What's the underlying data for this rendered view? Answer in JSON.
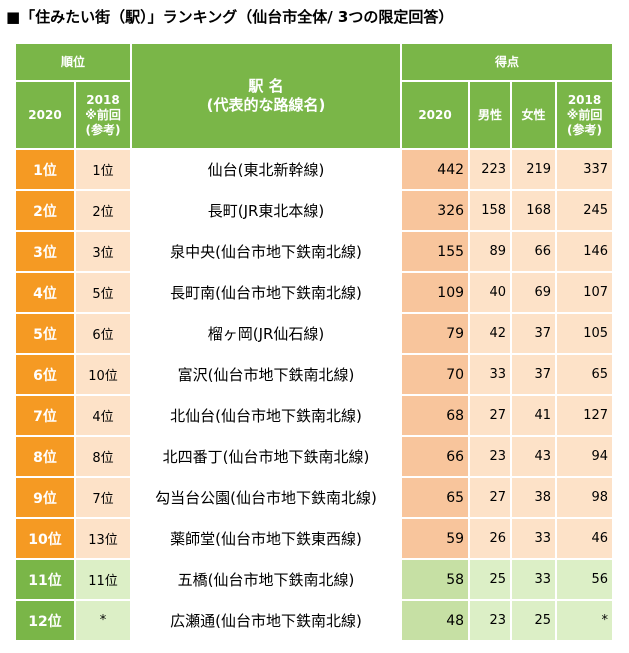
{
  "title": "■「住みたい街（駅）」ランキング（仙台市全体/ 3つの限定回答）",
  "header": {
    "rank": "順位",
    "station": "駅 名\n(代表的な路線名)",
    "score": "得点",
    "rank_2020": "2020",
    "rank_2018": "2018\n※前回\n(参考)",
    "score_2020": "2020",
    "male": "男性",
    "female": "女性",
    "score_2018": "2018\n※前回\n(参考)"
  },
  "rows": [
    [
      "1位",
      "1位",
      "仙台(東北新幹線)",
      "442",
      "223",
      "219",
      "337"
    ],
    [
      "2位",
      "2位",
      "長町(JR東北本線)",
      "326",
      "158",
      "168",
      "245"
    ],
    [
      "3位",
      "3位",
      "泉中央(仙台市地下鉄南北線)",
      "155",
      "89",
      "66",
      "146"
    ],
    [
      "4位",
      "5位",
      "長町南(仙台市地下鉄南北線)",
      "109",
      "40",
      "69",
      "107"
    ],
    [
      "5位",
      "6位",
      "榴ヶ岡(JR仙石線)",
      "79",
      "42",
      "37",
      "105"
    ],
    [
      "6位",
      "10位",
      "富沢(仙台市地下鉄南北線)",
      "70",
      "33",
      "37",
      "65"
    ],
    [
      "7位",
      "4位",
      "北仙台(仙台市地下鉄南北線)",
      "68",
      "27",
      "41",
      "127"
    ],
    [
      "8位",
      "8位",
      "北四番丁(仙台市地下鉄南北線)",
      "66",
      "23",
      "43",
      "94"
    ],
    [
      "9位",
      "7位",
      "勾当台公園(仙台市地下鉄南北線)",
      "65",
      "27",
      "38",
      "98"
    ],
    [
      "10位",
      "13位",
      "薬師堂(仙台市地下鉄東西線)",
      "59",
      "26",
      "33",
      "46"
    ],
    [
      "11位",
      "11位",
      "五橋(仙台市地下鉄南北線)",
      "58",
      "25",
      "33",
      "56"
    ],
    [
      "12位",
      "*",
      "広瀬通(仙台市地下鉄南北線)",
      "48",
      "23",
      "25",
      "*"
    ]
  ]
}
